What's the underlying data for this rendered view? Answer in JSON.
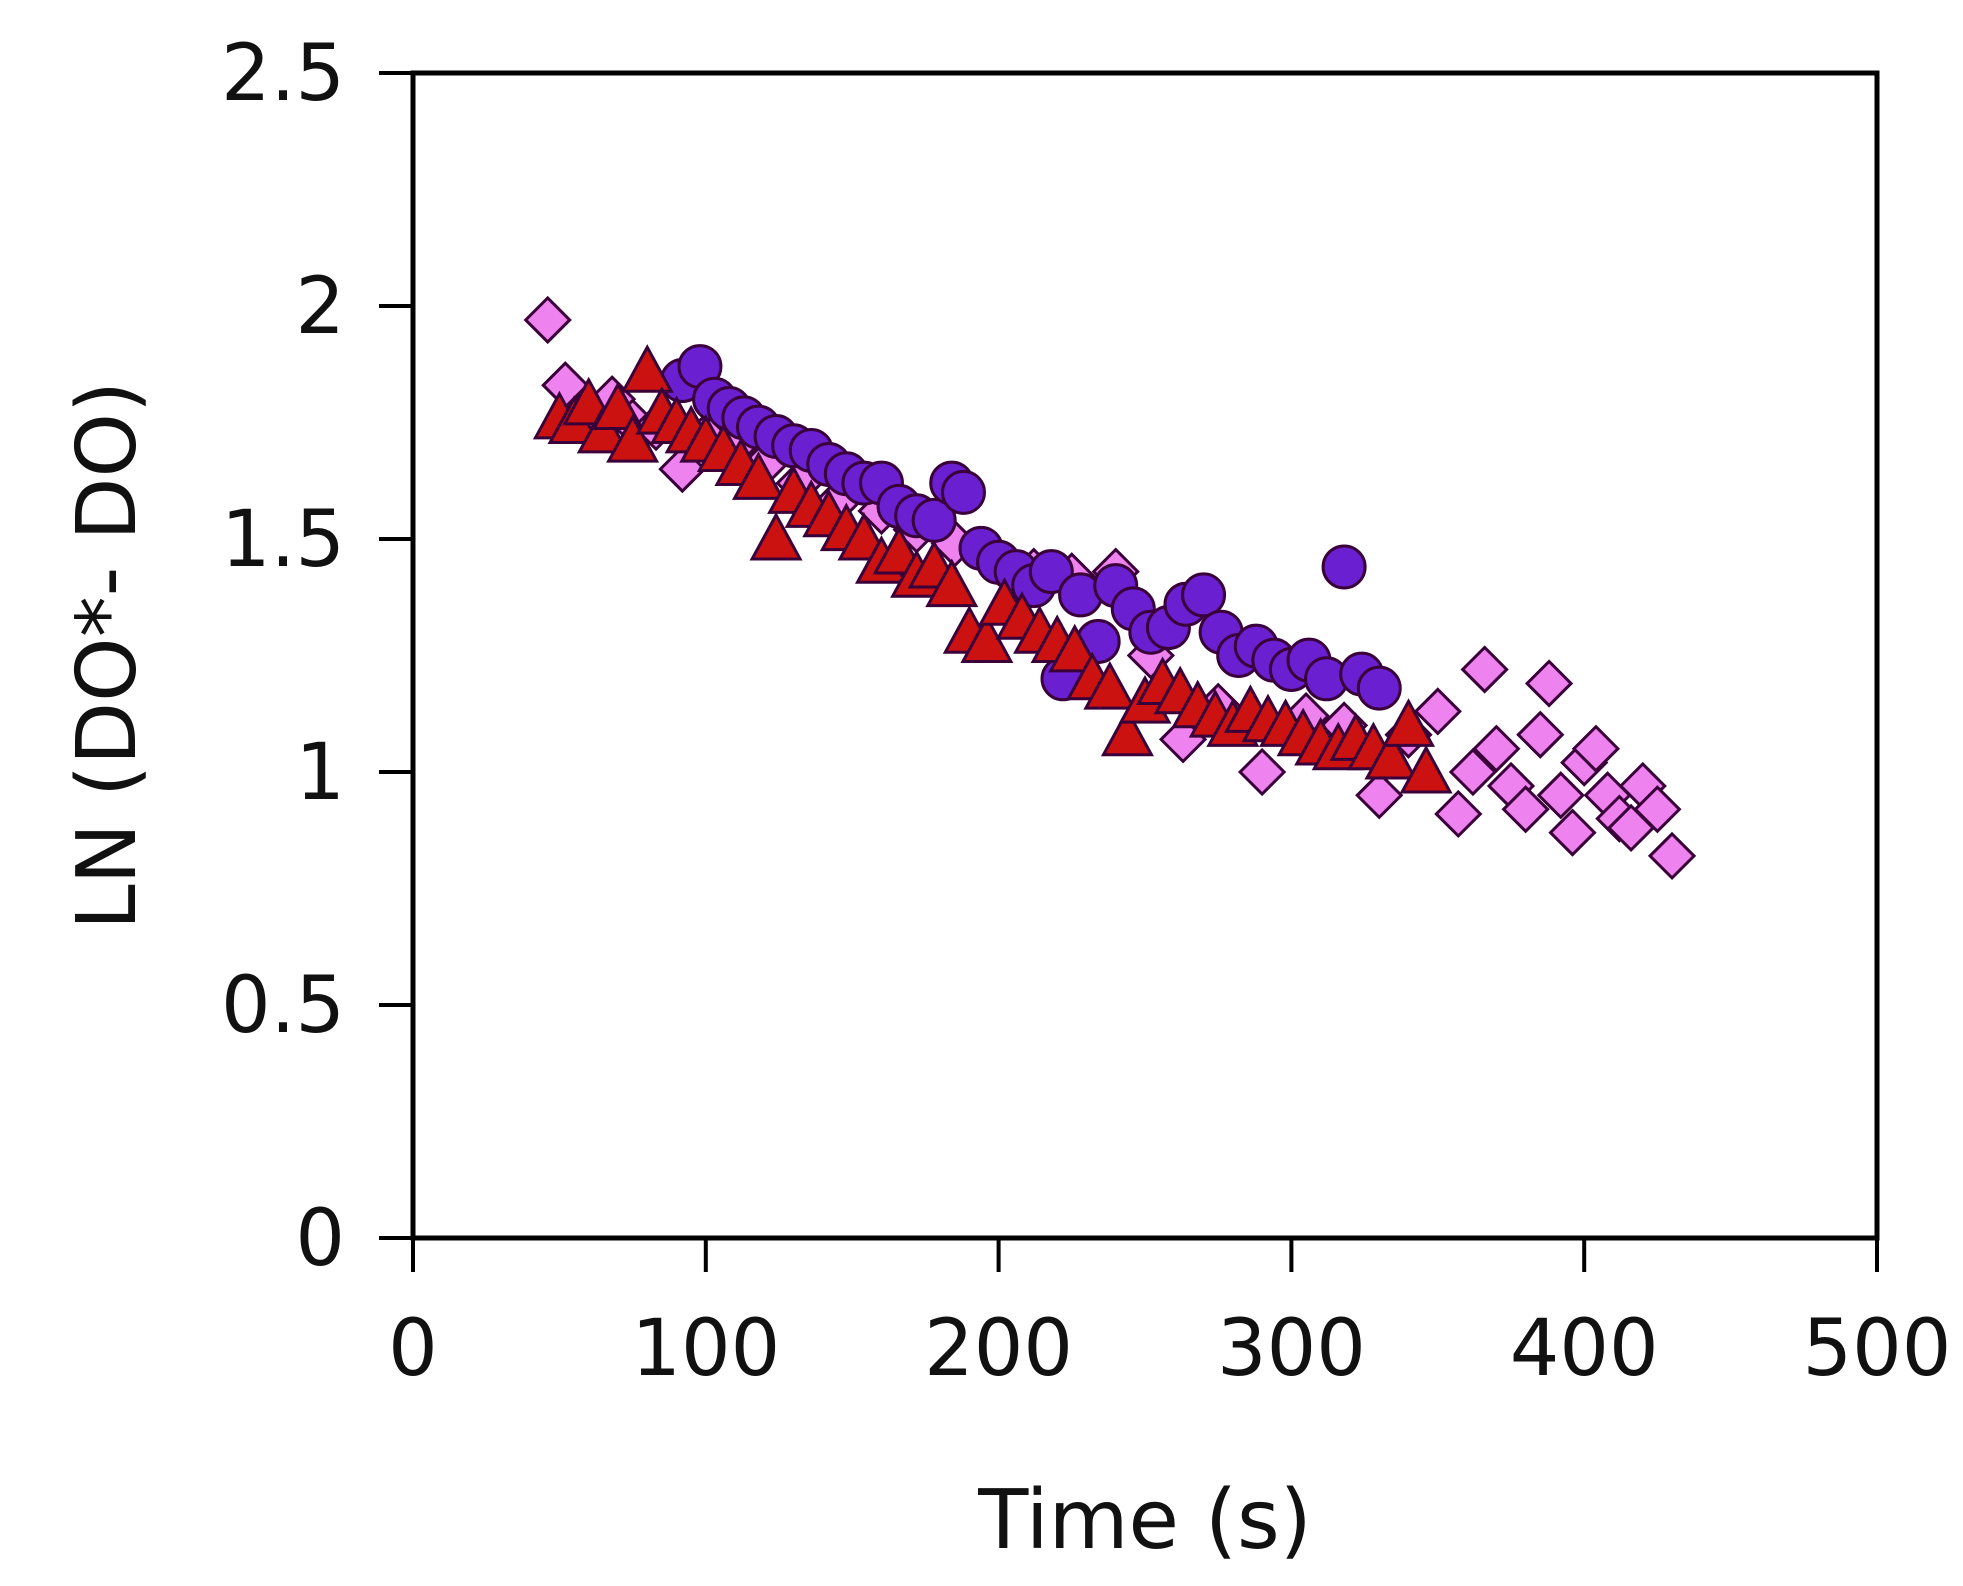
{
  "chart_data": {
    "type": "scatter",
    "title": "",
    "xlabel": "Time (s)",
    "ylabel": "LN (DO*- DO)",
    "xlim": [
      0,
      500
    ],
    "ylim": [
      0,
      2.5
    ],
    "xticks": [
      "0",
      "100",
      "200",
      "300",
      "400",
      "500"
    ],
    "yticks": [
      "0",
      "0.5",
      "1",
      "1.5",
      "2",
      "2.5"
    ],
    "grid": false,
    "legend": "none",
    "colors": {
      "diamond_fill": "#ee82ee",
      "circle_fill": "#6a1fd0",
      "triangle_fill": "#cc1111",
      "marker_edge": "#3a003a",
      "axis": "#000000"
    },
    "series": [
      {
        "marker": "diamond",
        "color": "#ee82ee",
        "x": [
          46,
          52,
          60,
          68,
          75,
          83,
          92,
          100,
          110,
          120,
          132,
          145,
          160,
          172,
          185,
          200,
          212,
          225,
          240,
          252,
          263,
          275,
          290,
          305,
          318,
          330,
          340,
          350,
          357,
          362,
          366,
          370,
          375,
          380,
          385,
          388,
          392,
          396,
          400,
          404,
          408,
          412,
          416,
          420,
          425,
          430
        ],
        "y": [
          1.97,
          1.83,
          1.78,
          1.8,
          1.75,
          1.74,
          1.65,
          1.72,
          1.7,
          1.66,
          1.62,
          1.58,
          1.56,
          1.52,
          1.49,
          1.45,
          1.43,
          1.42,
          1.43,
          1.25,
          1.07,
          1.14,
          1.0,
          1.12,
          1.1,
          0.95,
          1.08,
          1.13,
          0.91,
          1.0,
          1.22,
          1.05,
          0.97,
          0.92,
          1.08,
          1.19,
          0.95,
          0.87,
          1.02,
          1.05,
          0.95,
          0.9,
          0.88,
          0.97,
          0.92,
          0.82
        ]
      },
      {
        "marker": "circle",
        "color": "#6a1fd0",
        "x": [
          92,
          98,
          103,
          108,
          113,
          118,
          124,
          130,
          136,
          142,
          148,
          154,
          160,
          166,
          172,
          178,
          184,
          188,
          194,
          200,
          206,
          212,
          218,
          222,
          228,
          234,
          240,
          246,
          252,
          258,
          264,
          270,
          276,
          282,
          288,
          294,
          300,
          306,
          312,
          318,
          324,
          330
        ],
        "y": [
          1.84,
          1.87,
          1.8,
          1.78,
          1.76,
          1.74,
          1.72,
          1.7,
          1.69,
          1.66,
          1.64,
          1.62,
          1.62,
          1.57,
          1.55,
          1.54,
          1.62,
          1.6,
          1.48,
          1.45,
          1.43,
          1.4,
          1.43,
          1.2,
          1.38,
          1.28,
          1.4,
          1.35,
          1.3,
          1.31,
          1.36,
          1.38,
          1.3,
          1.25,
          1.27,
          1.24,
          1.22,
          1.24,
          1.2,
          1.44,
          1.21,
          1.18
        ]
      },
      {
        "marker": "triangle",
        "color": "#cc1111",
        "x": [
          50,
          55,
          60,
          65,
          70,
          75,
          80,
          85,
          90,
          95,
          100,
          106,
          112,
          118,
          124,
          130,
          136,
          142,
          148,
          154,
          160,
          166,
          172,
          178,
          184,
          190,
          196,
          202,
          208,
          214,
          220,
          226,
          232,
          238,
          244,
          250,
          256,
          262,
          268,
          274,
          280,
          286,
          292,
          298,
          304,
          310,
          316,
          322,
          328,
          334,
          340,
          346
        ],
        "y": [
          1.76,
          1.75,
          1.79,
          1.73,
          1.78,
          1.71,
          1.86,
          1.77,
          1.75,
          1.73,
          1.71,
          1.69,
          1.66,
          1.63,
          1.5,
          1.6,
          1.57,
          1.55,
          1.52,
          1.5,
          1.45,
          1.47,
          1.42,
          1.44,
          1.4,
          1.3,
          1.28,
          1.36,
          1.33,
          1.3,
          1.28,
          1.26,
          1.2,
          1.18,
          1.08,
          1.15,
          1.19,
          1.17,
          1.14,
          1.12,
          1.1,
          1.13,
          1.11,
          1.1,
          1.08,
          1.06,
          1.05,
          1.07,
          1.05,
          1.03,
          1.1,
          1.0
        ]
      }
    ]
  }
}
